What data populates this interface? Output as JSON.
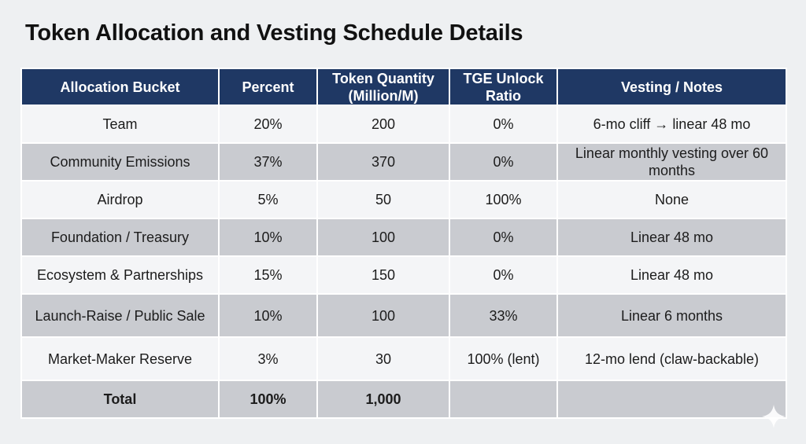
{
  "title": "Token Allocation and Vesting Schedule Details",
  "table": {
    "headers": [
      "Allocation Bucket",
      "Percent",
      "Token Quantity (Million/M)",
      "TGE Unlock Ratio",
      "Vesting / Notes"
    ],
    "rows": [
      {
        "bucket": "Team",
        "percent": "20%",
        "quantity": "200",
        "tge": "0%",
        "notes": "6-mo cliff → linear 48 mo"
      },
      {
        "bucket": "Community Emissions",
        "percent": "37%",
        "quantity": "370",
        "tge": "0%",
        "notes": "Linear monthly vesting over 60 months"
      },
      {
        "bucket": "Airdrop",
        "percent": "5%",
        "quantity": "50",
        "tge": "100%",
        "notes": "None"
      },
      {
        "bucket": "Foundation / Treasury",
        "percent": "10%",
        "quantity": "100",
        "tge": "0%",
        "notes": "Linear 48 mo"
      },
      {
        "bucket": "Ecosystem & Partnerships",
        "percent": "15%",
        "quantity": "150",
        "tge": "0%",
        "notes": "Linear 48 mo"
      },
      {
        "bucket": "Launch-Raise / Public Sale",
        "percent": "10%",
        "quantity": "100",
        "tge": "33%",
        "notes": "Linear 6 months"
      },
      {
        "bucket": "Market-Maker Reserve",
        "percent": "3%",
        "quantity": "30",
        "tge": "100% (lent)",
        "notes": "12-mo lend (claw-backable)"
      }
    ],
    "total": {
      "bucket": "Total",
      "percent": "100%",
      "quantity": "1,000",
      "tge": "",
      "notes": ""
    }
  },
  "colors": {
    "header_bg": "#1f3864",
    "row_light": "#f4f5f7",
    "row_dark": "#c9cbd0",
    "page_bg": "#eef0f2"
  },
  "icons": {
    "corner": "sparkle-icon"
  }
}
